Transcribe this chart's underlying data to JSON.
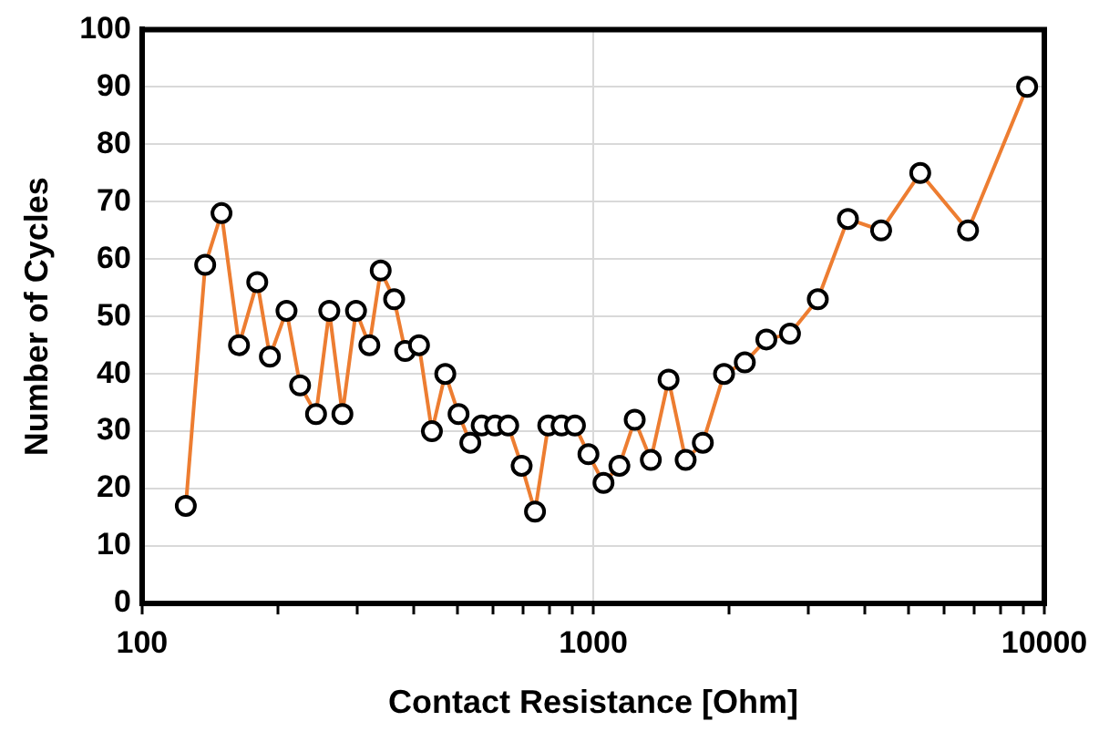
{
  "chart_data": {
    "type": "line",
    "xlabel": "Contact Resistance [Ohm]",
    "ylabel": "Number of Cycles",
    "x": [
      125,
      138,
      150,
      164,
      180,
      192,
      209,
      224,
      243,
      260,
      278,
      298,
      319,
      338,
      362,
      383,
      411,
      439,
      470,
      503,
      534,
      566,
      606,
      648,
      694,
      743,
      795,
      851,
      911,
      976,
      1054,
      1143,
      1236,
      1342,
      1469,
      1603,
      1750,
      1950,
      2168,
      2420,
      2730,
      3147,
      3670,
      4348,
      5308,
      6775,
      9160
    ],
    "series": [
      {
        "color": "#ed7d31",
        "values": [
          17,
          59,
          68,
          45,
          56,
          43,
          51,
          38,
          33,
          51,
          33,
          51,
          45,
          58,
          53,
          44,
          45,
          30,
          40,
          33,
          28,
          31,
          31,
          31,
          24,
          16,
          31,
          31,
          31,
          26,
          21,
          24,
          32,
          25,
          39,
          25,
          28,
          40,
          42,
          46,
          47,
          53,
          67,
          65,
          75,
          65,
          90
        ]
      }
    ],
    "log": "x",
    "xlim": [
      100,
      10000
    ],
    "xticks": [
      100,
      {
        "value": 200,
        "label": null
      },
      {
        "value": 300,
        "label": null
      },
      {
        "value": 400,
        "label": null
      },
      {
        "value": 500,
        "label": null
      },
      {
        "value": 600,
        "label": null
      },
      {
        "value": 700,
        "label": null
      },
      {
        "value": 800,
        "label": null
      },
      {
        "value": 900,
        "label": null
      },
      1000,
      {
        "value": 2000,
        "label": null
      },
      {
        "value": 3000,
        "label": null
      },
      {
        "value": 4000,
        "label": null
      },
      {
        "value": 5000,
        "label": null
      },
      {
        "value": 6000,
        "label": null
      },
      {
        "value": 7000,
        "label": null
      },
      {
        "value": 8000,
        "label": null
      },
      {
        "value": 9000,
        "label": null
      },
      10000
    ],
    "ylim": [
      0,
      100
    ],
    "yticks": [
      0,
      10,
      20,
      30,
      40,
      50,
      60,
      70,
      80,
      90,
      100
    ],
    "grid": true,
    "legend": false,
    "marker": "circle",
    "line_style": "solid"
  }
}
